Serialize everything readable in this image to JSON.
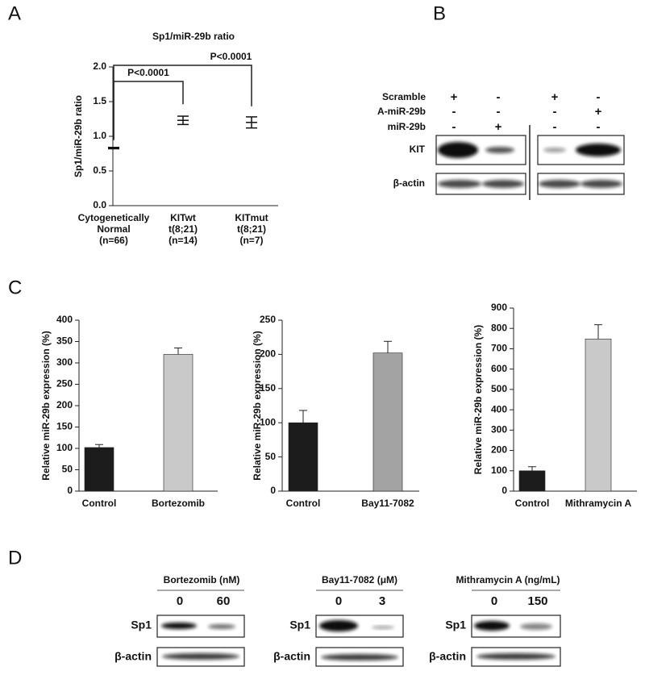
{
  "panel_labels": [
    "A",
    "B",
    "C",
    "D"
  ],
  "chart_data": [
    {
      "type": "errorbar",
      "title": "Sp1/miR-29b ratio",
      "ylabel": "Sp1/miR-29b ratio",
      "categories": [
        "Cytogenetically\nNormal\n(n=66)",
        "KITwt\nt(8;21)\n(n=14)",
        "KITmut\nt(8;21)\n(n=7)"
      ],
      "values": [
        0.83,
        1.23,
        1.2
      ],
      "errors": [
        0.01,
        0.06,
        0.08
      ],
      "ylim": [
        0,
        2
      ],
      "yticks": [
        {
          "value": 0,
          "label": "0.0"
        },
        0.5,
        {
          "value": 1,
          "label": "1.0"
        },
        1.5,
        {
          "value": 2,
          "label": "2.0"
        }
      ],
      "annotations": [
        "P<0.0001",
        "P<0.0001"
      ]
    },
    {
      "type": "bar",
      "ylabel": "Relative miR-29b expression (%)",
      "categories": [
        "Control",
        "Bortezomib"
      ],
      "values": [
        102,
        320
      ],
      "errors": [
        7,
        15
      ],
      "colors": [
        "#1c1c1c",
        "#c9c9c9"
      ],
      "ylim": [
        0,
        400
      ],
      "yticks": [
        0,
        50,
        100,
        150,
        200,
        250,
        300,
        350,
        400
      ]
    },
    {
      "type": "bar",
      "ylabel": "Relative miR-29b expression (%)",
      "categories": [
        "Control",
        "Bay11-7082"
      ],
      "values": [
        100,
        202
      ],
      "errors": [
        18,
        17
      ],
      "colors": [
        "#1c1c1c",
        "#a3a3a3"
      ],
      "ylim": [
        0,
        250
      ],
      "yticks": [
        0,
        50,
        100,
        150,
        200,
        250
      ]
    },
    {
      "type": "bar",
      "ylabel": "Relative miR-29b expression (%)",
      "categories": [
        "Control",
        "Mithramycin A"
      ],
      "values": [
        100,
        748
      ],
      "errors": [
        20,
        70
      ],
      "colors": [
        "#1c1c1c",
        "#c9c9c9"
      ],
      "ylim": [
        0,
        900
      ],
      "yticks": [
        0,
        100,
        200,
        300,
        400,
        500,
        600,
        700,
        800,
        900
      ]
    }
  ],
  "blot_b": {
    "rows": [
      "Scramble",
      "A-miR-29b",
      "miR-29b"
    ],
    "signs": [
      [
        "+",
        "-",
        "+",
        "-"
      ],
      [
        "-",
        "-",
        "-",
        "+"
      ],
      [
        "-",
        "+",
        "-",
        "-"
      ]
    ],
    "bands": [
      "KIT",
      "β-actin"
    ]
  },
  "blot_d": [
    {
      "treatment": "Bortezomib (nM)",
      "doses": [
        "0",
        "60"
      ],
      "bands": [
        "Sp1",
        "β-actin"
      ]
    },
    {
      "treatment": "Bay11-7082 (μM)",
      "doses": [
        "0",
        "3"
      ],
      "bands": [
        "Sp1",
        "β-actin"
      ]
    },
    {
      "treatment": "Mithramycin A (ng/mL)",
      "doses": [
        "0",
        "150"
      ],
      "bands": [
        "Sp1",
        "β-actin"
      ]
    }
  ]
}
